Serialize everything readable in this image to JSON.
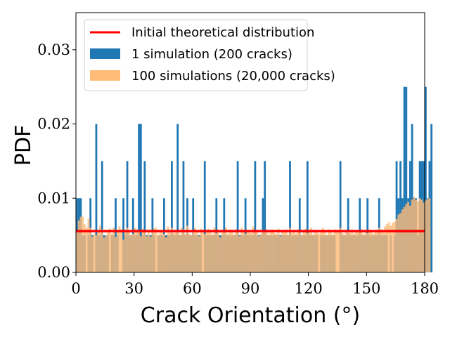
{
  "chart_data": {
    "type": "bar",
    "title": "",
    "xlabel": "Crack Orientation (°)",
    "ylabel": "PDF",
    "xlim": [
      0,
      180
    ],
    "ylim": [
      0,
      0.035
    ],
    "bin_width": 1,
    "xticks": [
      0,
      30,
      60,
      90,
      120,
      150,
      180
    ],
    "xtick_labels": [
      "0",
      "30",
      "60",
      "90",
      "120",
      "150",
      "180"
    ],
    "yticks": [
      0.0,
      0.01,
      0.02,
      0.03
    ],
    "ytick_labels": [
      "0.00",
      "0.01",
      "0.02",
      "0.03"
    ],
    "legend_position": "upper-left",
    "colors": {
      "simulation_1": "#1f77b4",
      "simulation_100": "#ffbb78",
      "theoretical": "#ff0000",
      "frame": "#000000"
    },
    "series": [
      {
        "name": "1 simulation (200 cracks)",
        "kind": "histogram",
        "values": [
          0.01,
          0.01,
          0.01,
          0.005,
          0.005,
          0.0,
          0.005,
          0.01,
          0.005,
          0.0,
          0.02,
          0.005,
          0.005,
          0.015,
          0.005,
          0.005,
          0.005,
          0.0,
          0.005,
          0.005,
          0.01,
          0.005,
          0.0,
          0.0,
          0.01,
          0.005,
          0.015,
          0.005,
          0.005,
          0.01,
          0.005,
          0.005,
          0.02,
          0.02,
          0.005,
          0.015,
          0.005,
          0.005,
          0.005,
          0.01,
          0.005,
          0.0,
          0.005,
          0.005,
          0.005,
          0.01,
          0.005,
          0.005,
          0.005,
          0.015,
          0.005,
          0.005,
          0.02,
          0.005,
          0.005,
          0.015,
          0.005,
          0.01,
          0.005,
          0.005,
          0.01,
          0.005,
          0.005,
          0.005,
          0.005,
          0.0,
          0.015,
          0.005,
          0.005,
          0.005,
          0.005,
          0.005,
          0.01,
          0.005,
          0.005,
          0.005,
          0.01,
          0.005,
          0.005,
          0.005,
          0.005,
          0.005,
          0.005,
          0.015,
          0.005,
          0.005,
          0.005,
          0.01,
          0.005,
          0.005,
          0.005,
          0.005,
          0.015,
          0.005,
          0.005,
          0.005,
          0.01,
          0.015,
          0.005,
          0.005,
          0.005,
          0.005,
          0.005,
          0.005,
          0.005,
          0.005,
          0.005,
          0.005,
          0.005,
          0.005,
          0.015,
          0.005,
          0.005,
          0.005,
          0.005,
          0.01,
          0.005,
          0.005,
          0.005,
          0.015,
          0.005,
          0.005,
          0.005,
          0.005,
          0.005,
          0.0,
          0.005,
          0.005,
          0.005,
          0.005,
          0.005,
          0.005,
          0.005,
          0.005,
          0.0,
          0.0,
          0.015,
          0.005,
          0.005,
          0.005,
          0.01,
          0.005,
          0.005,
          0.005,
          0.005,
          0.005,
          0.01,
          0.005,
          0.005,
          0.005,
          0.01,
          0.005,
          0.005,
          0.005,
          0.005,
          0.005,
          0.01,
          0.005,
          0.005,
          0.005,
          0.005,
          0.0,
          0.005,
          0.0,
          0.005,
          0.015,
          0.01,
          0.015,
          0.01,
          0.025,
          0.025,
          0.01,
          0.015,
          0.02,
          0.01,
          0.01,
          0.005,
          0.015,
          0.015,
          0.015,
          0.025,
          0.01,
          0.015,
          0.02
        ]
      },
      {
        "name": "100 simulations (20,000 cracks)",
        "kind": "histogram",
        "values": [
          0.0055,
          0.007,
          0.0075,
          0.0075,
          0.0065,
          0.006,
          0.0072,
          0.006,
          0.0048,
          0.0052,
          0.005,
          0.0055,
          0.0063,
          0.0058,
          0.0047,
          0.005,
          0.0054,
          0.0059,
          0.0052,
          0.006,
          0.0048,
          0.0056,
          0.0062,
          0.0058,
          0.0044,
          0.0057,
          0.006,
          0.0055,
          0.005,
          0.0052,
          0.006,
          0.0058,
          0.0054,
          0.0049,
          0.0059,
          0.0055,
          0.0049,
          0.0058,
          0.0048,
          0.0054,
          0.006,
          0.0059,
          0.005,
          0.0055,
          0.0057,
          0.0052,
          0.0047,
          0.0062,
          0.0058,
          0.006,
          0.0053,
          0.0056,
          0.0057,
          0.0051,
          0.006,
          0.0058,
          0.0052,
          0.0063,
          0.0052,
          0.005,
          0.0056,
          0.006,
          0.0055,
          0.0049,
          0.0059,
          0.0055,
          0.0052,
          0.0057,
          0.0059,
          0.0056,
          0.0051,
          0.0061,
          0.0053,
          0.0058,
          0.0047,
          0.0054,
          0.0057,
          0.0061,
          0.0052,
          0.0058,
          0.0055,
          0.0051,
          0.0058,
          0.0055,
          0.0049,
          0.006,
          0.0056,
          0.0052,
          0.0055,
          0.0057,
          0.0053,
          0.0062,
          0.0055,
          0.0056,
          0.0049,
          0.0052,
          0.0057,
          0.0054,
          0.0058,
          0.0051,
          0.0056,
          0.0058,
          0.0053,
          0.0052,
          0.0059,
          0.0049,
          0.0055,
          0.0056,
          0.0058,
          0.0051,
          0.006,
          0.0053,
          0.0056,
          0.0052,
          0.0058,
          0.0055,
          0.005,
          0.0056,
          0.0059,
          0.0053,
          0.0054,
          0.006,
          0.0051,
          0.0057,
          0.0054,
          0.0052,
          0.0056,
          0.006,
          0.0054,
          0.005,
          0.0058,
          0.0056,
          0.0051,
          0.0058,
          0.0055,
          0.0054,
          0.006,
          0.0053,
          0.0051,
          0.0056,
          0.0057,
          0.0053,
          0.0058,
          0.0052,
          0.0055,
          0.0056,
          0.0054,
          0.0058,
          0.0051,
          0.0056,
          0.0053,
          0.0058,
          0.0057,
          0.0052,
          0.0056,
          0.0055,
          0.006,
          0.0058,
          0.0057,
          0.0062,
          0.0065,
          0.0068,
          0.0063,
          0.0067,
          0.0068,
          0.0072,
          0.0078,
          0.008,
          0.0085,
          0.0088,
          0.0092,
          0.0095,
          0.009,
          0.0098,
          0.0102,
          0.0098,
          0.0096,
          0.01,
          0.0098,
          0.0094,
          0.0097,
          0.0099,
          0.01
        ]
      },
      {
        "name": "Initial theoretical distribution",
        "kind": "line",
        "values": [
          0.00556
        ]
      }
    ]
  },
  "legend": {
    "items": [
      {
        "label": "Initial theoretical distribution",
        "swatch": "line",
        "color": "#ff0000"
      },
      {
        "label": "1 simulation (200 cracks)",
        "swatch": "patch",
        "color": "#1f77b4"
      },
      {
        "label": "100 simulations (20,000 cracks)",
        "swatch": "patch",
        "color": "#ffbb78"
      }
    ]
  }
}
